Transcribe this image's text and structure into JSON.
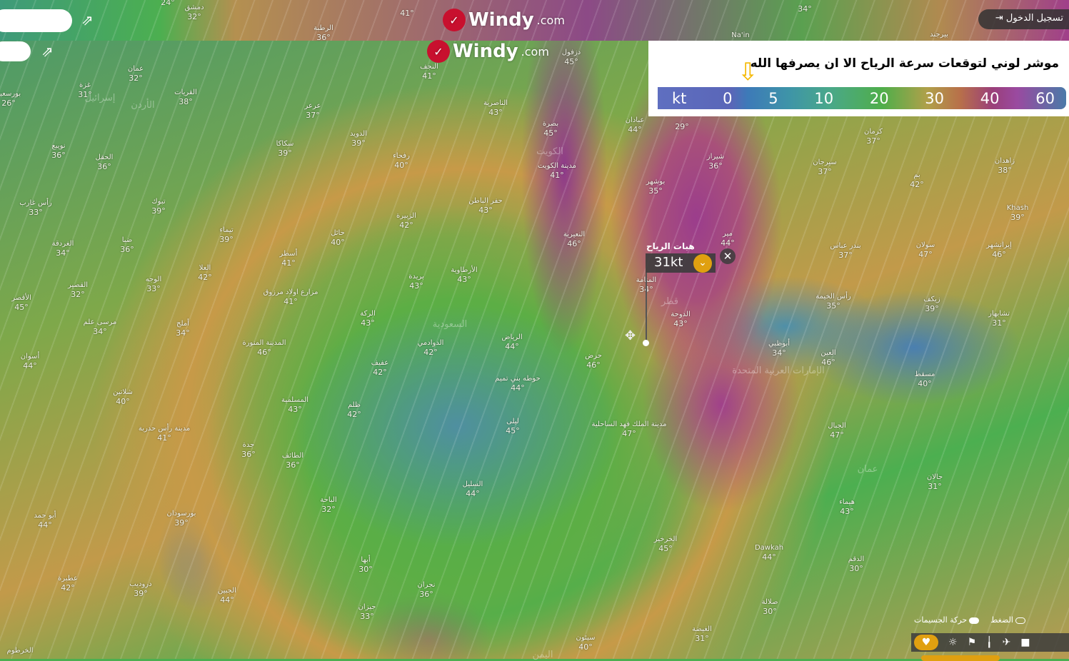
{
  "app": {
    "brand": "Windy",
    "brand_suffix": ".com",
    "login_label": "تسجيل الدخول"
  },
  "legend": {
    "title": "موشر لوني لتوقعات سرعة الرياح الا ان يصرفها الله",
    "unit": "kt",
    "ticks": [
      "0",
      "5",
      "10",
      "20",
      "30",
      "40",
      "60"
    ],
    "arrow_color": "#f5b800"
  },
  "popup": {
    "title": "هبات الرياح",
    "value": "31kt"
  },
  "controls": {
    "particles_label": "حركة الجسيمات",
    "pressure_label": "الضغط",
    "icons": [
      "heart-icon",
      "weather-icon",
      "windsock-icon",
      "thermometer-icon",
      "airplane-icon",
      "webcam-icon"
    ]
  },
  "colors": {
    "accent": "#e0a010",
    "logo_red": "#c8102e"
  },
  "countries": [
    "السعودية",
    "إسرائيل",
    "الأردن",
    "الكويت",
    "الإمارات العربية المتحدة",
    "عمان",
    "اليمن",
    "قطر"
  ],
  "strip_cities": [
    {
      "name": "دمشق",
      "temp": "32°"
    },
    {
      "name": "",
      "temp": "24°"
    },
    {
      "name": "",
      "temp": "41°"
    },
    {
      "name": "الرطبة",
      "temp": "36°"
    },
    {
      "name": "",
      "temp": "34°"
    },
    {
      "name": "Na'in",
      "temp": ""
    },
    {
      "name": "بيرجند",
      "temp": ""
    }
  ],
  "cities": [
    {
      "name": "عمان",
      "temp": "32°"
    },
    {
      "name": "غزة",
      "temp": "31°"
    },
    {
      "name": "بورسعيد",
      "temp": "26°"
    },
    {
      "name": "القريات",
      "temp": "38°"
    },
    {
      "name": "عرعر",
      "temp": "37°"
    },
    {
      "name": "سكاكا",
      "temp": "39°"
    },
    {
      "name": "الدويد",
      "temp": "39°"
    },
    {
      "name": "رفحاء",
      "temp": "40°"
    },
    {
      "name": "النجف",
      "temp": "41°"
    },
    {
      "name": "الناصرية",
      "temp": "43°"
    },
    {
      "name": "دزفول",
      "temp": "45°"
    },
    {
      "name": "بصرة",
      "temp": "45°"
    },
    {
      "name": "مدينة الكويت",
      "temp": "41°"
    },
    {
      "name": "بوشهر",
      "temp": "35°"
    },
    {
      "name": "",
      "temp": "29°"
    },
    {
      "name": "عبادان",
      "temp": "44°"
    },
    {
      "name": "شيراز",
      "temp": "36°"
    },
    {
      "name": "كرمان",
      "temp": "37°"
    },
    {
      "name": "سيرجان",
      "temp": "37°"
    },
    {
      "name": "بم",
      "temp": "42°"
    },
    {
      "name": "زاهدان",
      "temp": "38°"
    },
    {
      "name": "Khash",
      "temp": "39°"
    },
    {
      "name": "إيرانشهر",
      "temp": "46°"
    },
    {
      "name": "سولان",
      "temp": "47°"
    },
    {
      "name": "بندر عباس",
      "temp": "37°"
    },
    {
      "name": "حفر الباطن",
      "temp": "43°"
    },
    {
      "name": "الزبيرة",
      "temp": "42°"
    },
    {
      "name": "النعيرية",
      "temp": "46°"
    },
    {
      "name": "حائل",
      "temp": "40°"
    },
    {
      "name": "تيماء",
      "temp": "39°"
    },
    {
      "name": "تبوك",
      "temp": "39°"
    },
    {
      "name": "الحقل",
      "temp": "36°"
    },
    {
      "name": "نويبع",
      "temp": "36°"
    },
    {
      "name": "ضبا",
      "temp": "36°"
    },
    {
      "name": "رأس غارب",
      "temp": "33°"
    },
    {
      "name": "الغردقة",
      "temp": "34°"
    },
    {
      "name": "القصير",
      "temp": "32°"
    },
    {
      "name": "الأقصر",
      "temp": "45°"
    },
    {
      "name": "مرسى علم",
      "temp": "34°"
    },
    {
      "name": "أسوان",
      "temp": "44°"
    },
    {
      "name": "شلاتين",
      "temp": "40°"
    },
    {
      "name": "أسطر",
      "temp": "41°"
    },
    {
      "name": "العلا",
      "temp": "42°"
    },
    {
      "name": "الوجه",
      "temp": "33°"
    },
    {
      "name": "مزارع اولاد مرزوق",
      "temp": "41°"
    },
    {
      "name": "بريدة",
      "temp": "43°"
    },
    {
      "name": "الأرطاوية",
      "temp": "43°"
    },
    {
      "name": "الركة",
      "temp": "43°"
    },
    {
      "name": "المدينة المنورة",
      "temp": "46°"
    },
    {
      "name": "أملج",
      "temp": "34°"
    },
    {
      "name": "الدوادمي",
      "temp": "42°"
    },
    {
      "name": "الرياض",
      "temp": "44°"
    },
    {
      "name": "عفيف",
      "temp": "42°"
    },
    {
      "name": "حرض",
      "temp": "46°"
    },
    {
      "name": "حوطه بني تميم",
      "temp": "44°"
    },
    {
      "name": "المنامة",
      "temp": "34°"
    },
    {
      "name": "الدوحة",
      "temp": "43°"
    },
    {
      "name": "أبوظبي",
      "temp": "34°"
    },
    {
      "name": "رأس الخيمة",
      "temp": "35°"
    },
    {
      "name": "العين",
      "temp": "46°"
    },
    {
      "name": "زيكف",
      "temp": "39°"
    },
    {
      "name": "تشابهار",
      "temp": "31°"
    },
    {
      "name": "مسقط",
      "temp": "40°"
    },
    {
      "name": "مير",
      "temp": "44°"
    },
    {
      "name": "المسلمية",
      "temp": "43°"
    },
    {
      "name": "ظلم",
      "temp": "42°"
    },
    {
      "name": "ليلى",
      "temp": "45°"
    },
    {
      "name": "مدينة الملك فهد الساحلية",
      "temp": "47°"
    },
    {
      "name": "مدينة رأس حدربة",
      "temp": "41°"
    },
    {
      "name": "جدة",
      "temp": "36°"
    },
    {
      "name": "الطائف",
      "temp": "36°"
    },
    {
      "name": "السليل",
      "temp": "44°"
    },
    {
      "name": "الباحة",
      "temp": "32°"
    },
    {
      "name": "الجبال",
      "temp": "47°"
    },
    {
      "name": "جالان",
      "temp": "31°"
    },
    {
      "name": "هيماء",
      "temp": "43°"
    },
    {
      "name": "أبو حمد",
      "temp": "44°"
    },
    {
      "name": "بورسودان",
      "temp": "39°"
    },
    {
      "name": "الخرخير",
      "temp": "45°"
    },
    {
      "name": "Dawkah",
      "temp": "44°"
    },
    {
      "name": "أبها",
      "temp": "30°"
    },
    {
      "name": "عطبرة",
      "temp": "42°"
    },
    {
      "name": "دروديب",
      "temp": "39°"
    },
    {
      "name": "جيزان",
      "temp": "33°"
    },
    {
      "name": "نجران",
      "temp": "36°"
    },
    {
      "name": "الجبين",
      "temp": "44°"
    },
    {
      "name": "صلالة",
      "temp": "30°"
    },
    {
      "name": "الدقم",
      "temp": "30°"
    },
    {
      "name": "سيئون",
      "temp": "40°"
    },
    {
      "name": "الغيضة",
      "temp": "31°"
    },
    {
      "name": "الخرطوم",
      "temp": ""
    }
  ]
}
